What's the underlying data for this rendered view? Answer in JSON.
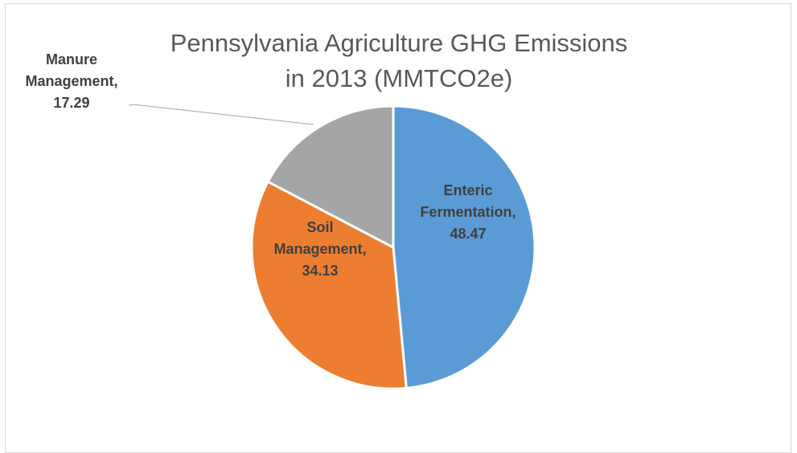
{
  "chart_data": {
    "type": "pie",
    "title_lines": [
      "Pennsylvania Agriculture GHG Emissions",
      "in 2013 (MMTCO2e)"
    ],
    "slices": [
      {
        "label": "Enteric Fermentation",
        "value": 48.47,
        "display": "48.47",
        "color": "#5b9bd5"
      },
      {
        "label": "Soil Management",
        "value": 34.13,
        "display": "34.13",
        "color": "#ed7d31"
      },
      {
        "label": "Manure Management",
        "value": 17.29,
        "display": "17.29",
        "color": "#a5a5a5"
      }
    ],
    "legend": "none",
    "label_position": "inside-end except Manure Management outside with leader line"
  }
}
